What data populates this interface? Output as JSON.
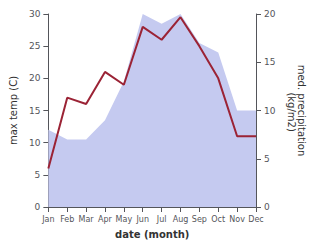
{
  "chart_data": {
    "type": "line",
    "xlabel": "date (month)",
    "ylabel": "max temp (C)",
    "y2label": "med. precipitation\n (kg/m2)",
    "categories": [
      "Jan",
      "Feb",
      "Mar",
      "Apr",
      "May",
      "Jun",
      "Jul",
      "Aug",
      "Sep",
      "Oct",
      "Nov",
      "Dec"
    ],
    "series": [
      {
        "type": "area",
        "color": "#c5caf0",
        "axis": "y2",
        "values": [
          8,
          7,
          7,
          9,
          13,
          20,
          19,
          20,
          17,
          16,
          10,
          10
        ]
      },
      {
        "type": "line",
        "color": "#9b2335",
        "values": [
          6,
          17,
          16,
          21,
          19,
          28,
          26,
          29.5,
          25,
          20,
          11,
          11
        ]
      }
    ],
    "ylim": [
      0,
      30
    ],
    "yticks": [
      0,
      5,
      10,
      15,
      20,
      25,
      30
    ],
    "y2lim": [
      0,
      20
    ],
    "y2ticks": [
      0,
      5,
      10,
      15,
      20
    ],
    "grid": false
  }
}
